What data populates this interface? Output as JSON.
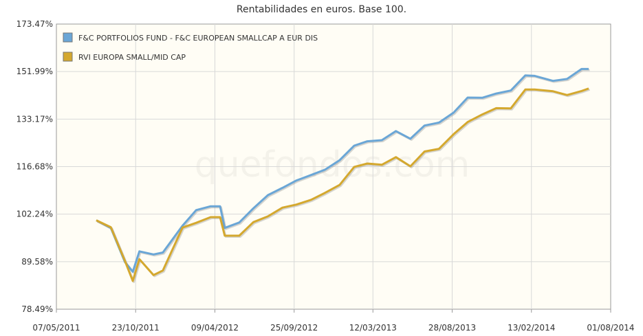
{
  "chart_data": {
    "type": "line",
    "title": "Rentabilidades en euros. Base 100.",
    "watermark": "quefondos.com",
    "y_tick_labels": [
      "173.47%",
      "151.99%",
      "133.17%",
      "116.68%",
      "102.24%",
      "89.58%",
      "78.49%"
    ],
    "y_tick_values": [
      173.47,
      151.99,
      133.17,
      116.68,
      102.24,
      89.58,
      78.49
    ],
    "ylim": [
      78.49,
      173.47
    ],
    "y_scale": "log",
    "x_tick_labels": [
      "07/05/2011",
      "23/10/2011",
      "09/04/2012",
      "25/09/2012",
      "12/03/2013",
      "28/08/2013",
      "13/02/2014",
      "01/08/2014"
    ],
    "x_tick_values": [
      "2011-05-07",
      "2011-10-23",
      "2012-04-09",
      "2012-09-25",
      "2013-03-12",
      "2013-08-28",
      "2014-02-13",
      "2014-08-01"
    ],
    "xlim": [
      "2011-05-07",
      "2014-08-01"
    ],
    "grid": true,
    "legend_position": "top-left",
    "x": [
      "2011-07-31",
      "2011-08-31",
      "2011-09-30",
      "2011-10-17",
      "2011-10-31",
      "2011-11-30",
      "2011-12-20",
      "2012-01-31",
      "2012-02-29",
      "2012-03-31",
      "2012-04-20",
      "2012-04-30",
      "2012-05-31",
      "2012-06-30",
      "2012-07-31",
      "2012-08-31",
      "2012-09-30",
      "2012-10-31",
      "2012-11-30",
      "2012-12-31",
      "2013-01-31",
      "2013-02-28",
      "2013-03-31",
      "2013-04-30",
      "2013-05-31",
      "2013-06-30",
      "2013-07-31",
      "2013-08-31",
      "2013-09-30",
      "2013-10-31",
      "2013-11-30",
      "2013-12-31",
      "2014-01-31",
      "2014-02-20",
      "2014-03-31",
      "2014-04-30",
      "2014-05-31",
      "2014-06-15"
    ],
    "series": [
      {
        "name": "F&C PORTFOLIOS FUND - F&C EUROPEAN SMALLCAP A EUR DIS",
        "color": "#6aa6d6",
        "values": [
          100.5,
          98.4,
          89.5,
          87.1,
          92.2,
          91.4,
          91.9,
          99.0,
          103.4,
          104.5,
          104.5,
          98.4,
          99.9,
          103.9,
          107.8,
          110.0,
          112.3,
          114.0,
          115.7,
          118.8,
          123.7,
          125.2,
          125.6,
          128.8,
          126.1,
          130.8,
          131.9,
          135.6,
          141.4,
          141.3,
          143.0,
          144.2,
          150.4,
          150.2,
          148.1,
          148.9,
          153.1,
          153.1
        ]
      },
      {
        "name": "RVI EUROPA SMALL/MID CAP",
        "color": "#d4a82e",
        "values": [
          100.5,
          98.6,
          89.8,
          84.9,
          90.2,
          86.3,
          87.4,
          98.5,
          99.8,
          101.4,
          101.4,
          96.3,
          96.3,
          100.0,
          101.6,
          104.1,
          105.0,
          106.4,
          108.5,
          110.9,
          116.6,
          117.7,
          117.3,
          119.8,
          116.8,
          121.7,
          122.6,
          127.7,
          132.1,
          134.9,
          137.3,
          137.2,
          144.6,
          144.6,
          143.9,
          142.4,
          144.0,
          145.0
        ]
      }
    ]
  }
}
